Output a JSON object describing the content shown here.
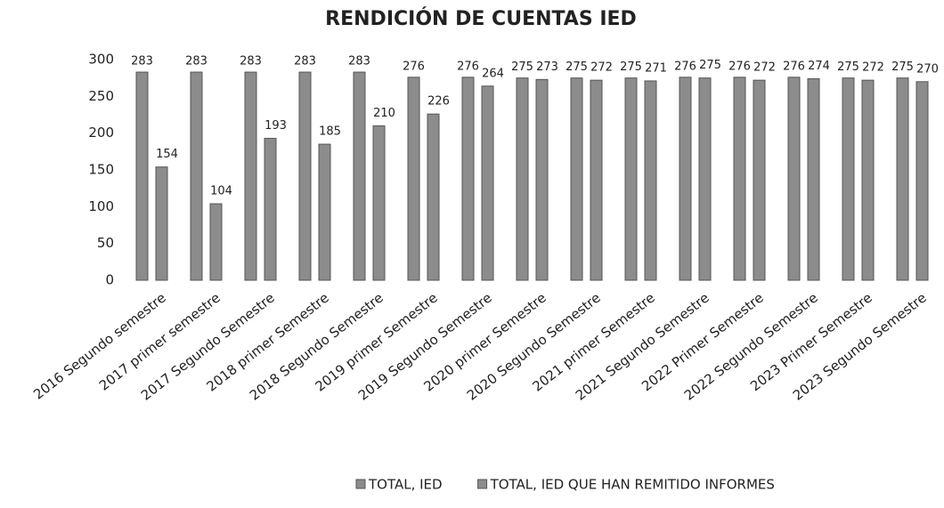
{
  "chart_data": {
    "type": "bar",
    "title": "RENDICIÓN DE CUENTAS IED",
    "categories": [
      "2016 Segundo semestre",
      "2017 primer semestre",
      "2017 Segundo Semestre",
      "2018 primer Semestre",
      "2018 Segundo Semestre",
      "2019 primer Semestre",
      "2019 Segundo Semestre",
      "2020 primer Semestre",
      "2020 Segundo Semestre",
      "2021 primer Semestre",
      "2021 Segundo Semestre",
      "2022 Primer Semestre",
      "2022 Segundo Semestre",
      "2023 Primer Semestre",
      "2023 Segundo Semestre"
    ],
    "series": [
      {
        "name": "TOTAL, IED",
        "color": "#8c8c8c",
        "values": [
          283,
          283,
          283,
          283,
          283,
          276,
          276,
          275,
          275,
          275,
          276,
          276,
          276,
          275,
          275
        ]
      },
      {
        "name": "TOTAL, IED QUE HAN REMITIDO INFORMES",
        "color": "#8c8c8c",
        "values": [
          154,
          104,
          193,
          185,
          210,
          226,
          264,
          273,
          272,
          271,
          275,
          272,
          274,
          272,
          270
        ]
      }
    ],
    "ylim": [
      0,
      300
    ],
    "yticks": [
      0,
      50,
      100,
      150,
      200,
      250,
      300
    ],
    "grid": false,
    "legend": "bottom"
  }
}
